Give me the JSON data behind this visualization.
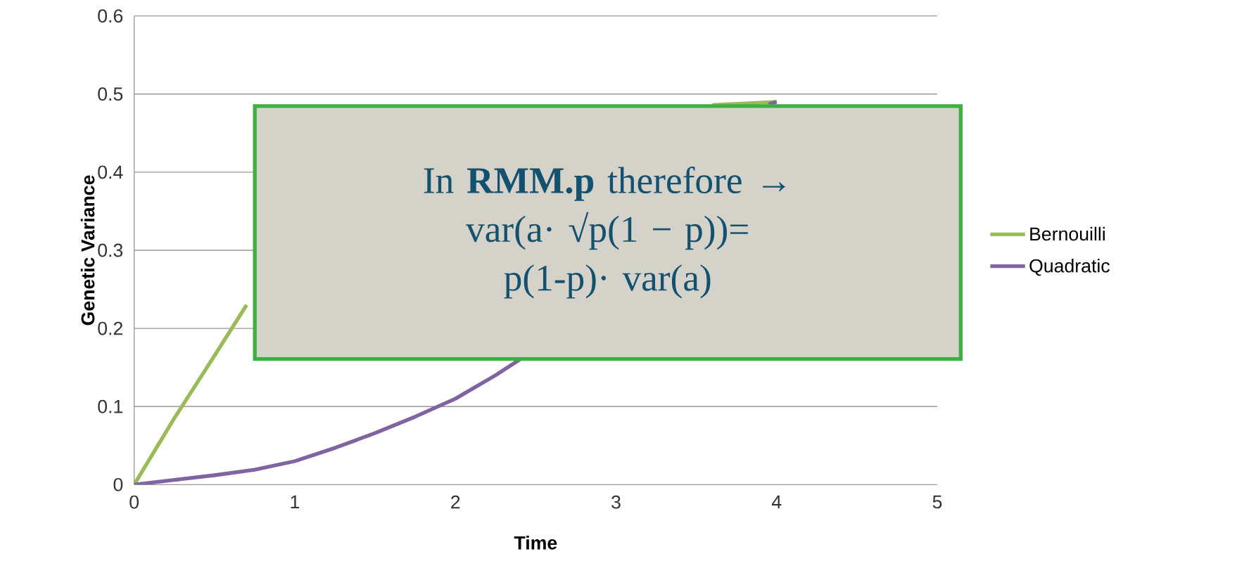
{
  "chart_data": {
    "type": "line",
    "xlabel": "Time",
    "ylabel": "Genetic Variance",
    "xlim": [
      0,
      5
    ],
    "ylim": [
      0,
      0.6
    ],
    "xticks": [
      0,
      1,
      2,
      3,
      4,
      5
    ],
    "yticks": [
      0,
      0.1,
      0.2,
      0.3,
      0.4,
      0.5,
      0.6
    ],
    "grid": "y",
    "legend": "right",
    "marker": "none",
    "line_style": "solid",
    "series": [
      {
        "name": "Bernouilli",
        "color": "#9bbb59",
        "x": [
          0,
          0.25,
          0.5,
          0.7,
          1.0,
          3.6,
          3.8,
          4.0
        ],
        "values": [
          0,
          0.085,
          0.165,
          0.23,
          null,
          0.486,
          0.488,
          0.49
        ]
      },
      {
        "name": "Quadratic",
        "color": "#8064a2",
        "x": [
          0,
          0.25,
          0.5,
          0.75,
          1,
          1.25,
          1.5,
          1.75,
          2,
          2.25,
          2.4,
          2.6,
          3.95,
          4.0
        ],
        "values": [
          0,
          0.006,
          0.012,
          0.019,
          0.03,
          0.047,
          0.066,
          0.087,
          0.11,
          0.14,
          0.16,
          null,
          0.487,
          0.49
        ]
      }
    ],
    "annotations": [
      "In **RMM.p** therefore →",
      "var(a· √p(1 − p))=",
      "p(1-p)· var(a)"
    ]
  }
}
